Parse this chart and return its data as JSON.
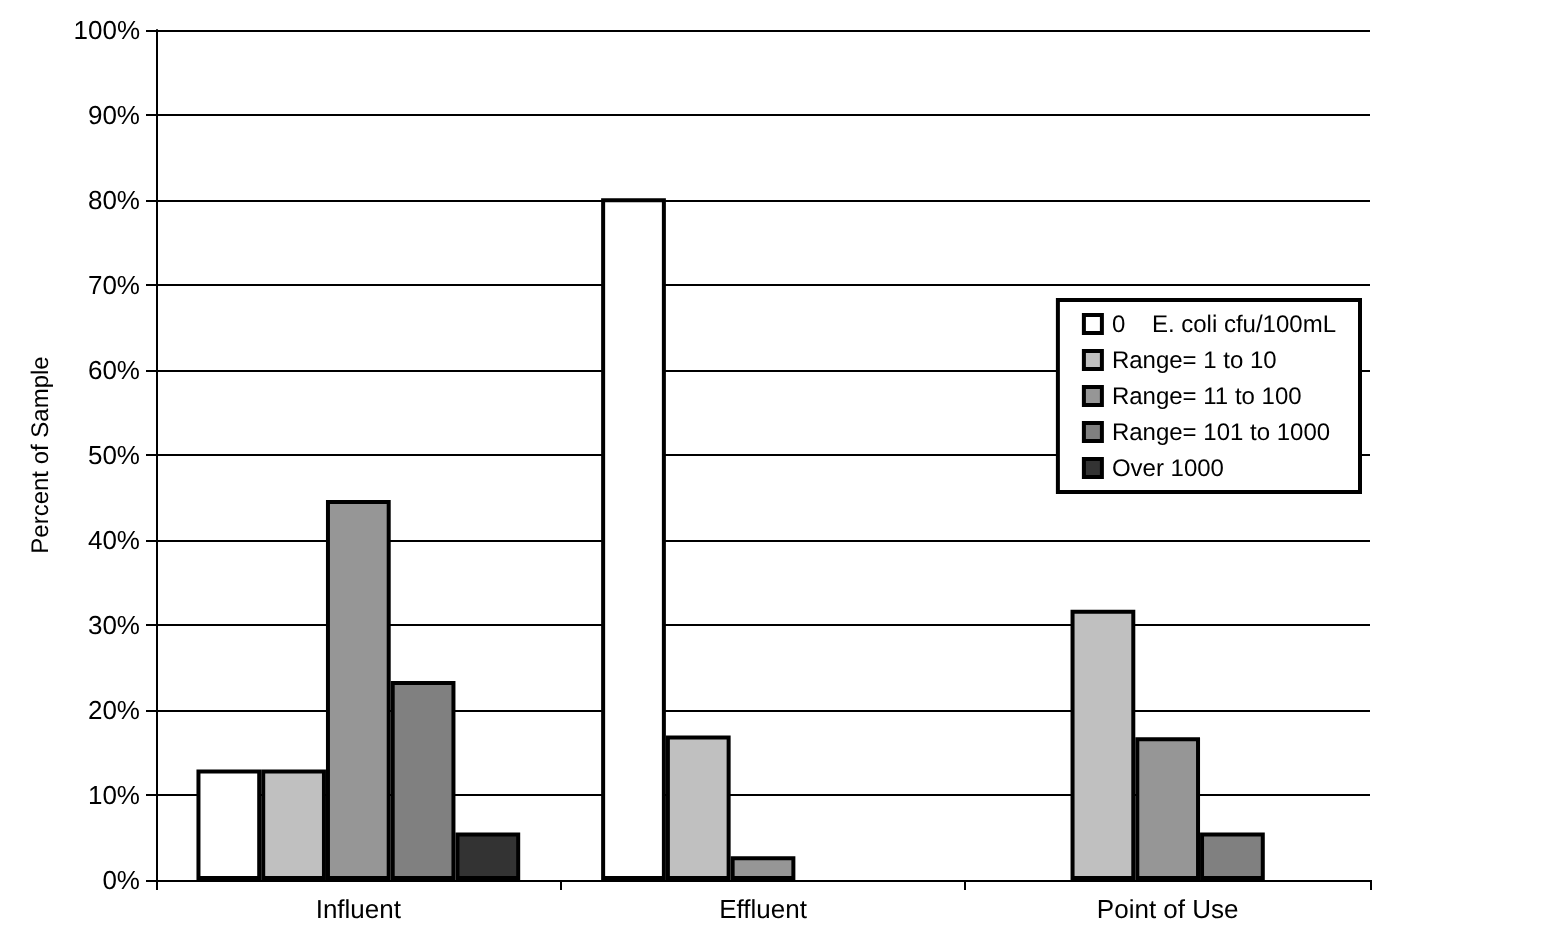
{
  "chart_data": {
    "type": "bar",
    "ylabel": "Percent of Sample",
    "categories": [
      "Influent",
      "Effluent",
      "Point of Use"
    ],
    "series": [
      {
        "name": "0    E. coli cfu/100mL",
        "color": "#ffffff",
        "values": [
          13,
          80.2,
          null
        ]
      },
      {
        "name": "Range= 1 to 10",
        "color": "#c0c0c0",
        "values": [
          13,
          17,
          31.8
        ]
      },
      {
        "name": "Range= 11 to 100",
        "color": "#969696",
        "values": [
          44.7,
          2.8,
          16.8
        ]
      },
      {
        "name": "Range= 101 to 1000",
        "color": "#808080",
        "values": [
          23.4,
          null,
          5.6
        ]
      },
      {
        "name": "Over 1000",
        "color": "#333333",
        "values": [
          5.6,
          null,
          null
        ]
      }
    ],
    "ylim": [
      0,
      100
    ],
    "yticks": [
      {
        "value": 0,
        "label": "0%"
      },
      {
        "value": 10,
        "label": "10%"
      },
      {
        "value": 20,
        "label": "20%"
      },
      {
        "value": 30,
        "label": "30%"
      },
      {
        "value": 40,
        "label": "40%"
      },
      {
        "value": 50,
        "label": "50%"
      },
      {
        "value": 60,
        "label": "60%"
      },
      {
        "value": 70,
        "label": "70%"
      },
      {
        "value": 80,
        "label": "80%"
      },
      {
        "value": 90,
        "label": "90%"
      },
      {
        "value": 100,
        "label": "100%"
      }
    ],
    "grid": "y",
    "legend": "top right"
  }
}
